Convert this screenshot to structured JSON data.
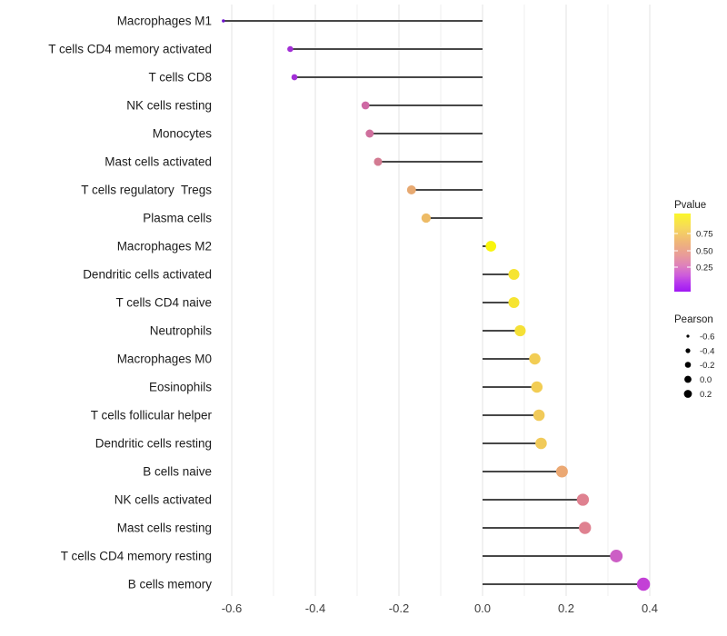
{
  "chart_data": {
    "type": "scatter",
    "variant": "lollipop",
    "title": "",
    "xlabel": "",
    "ylabel": "",
    "xlim": [
      -0.65,
      0.45
    ],
    "x_ticks": [
      -0.6,
      -0.4,
      -0.2,
      0.0,
      0.2,
      0.4
    ],
    "x_tick_labels": [
      "-0.6",
      "-0.4",
      "-0.2",
      "0.0",
      "0.2",
      "0.4"
    ],
    "grid": true,
    "legend_position": "right",
    "points": [
      {
        "label": "Macrophages M1",
        "pearson": -0.62,
        "color": "#6e11ce"
      },
      {
        "label": "T cells CD4 memory activated",
        "pearson": -0.46,
        "color": "#a22fd6"
      },
      {
        "label": "T cells CD8",
        "pearson": -0.45,
        "color": "#a22fd6"
      },
      {
        "label": "NK cells resting",
        "pearson": -0.28,
        "color": "#ce69a4"
      },
      {
        "label": "Monocytes",
        "pearson": -0.27,
        "color": "#cf6f9d"
      },
      {
        "label": "Mast cells activated",
        "pearson": -0.25,
        "color": "#d37b92"
      },
      {
        "label": "T cells regulatory  Tregs",
        "pearson": -0.17,
        "color": "#e7a971"
      },
      {
        "label": "Plasma cells",
        "pearson": -0.135,
        "color": "#edbb66"
      },
      {
        "label": "Macrophages M2",
        "pearson": 0.02,
        "color": "#f9f50c"
      },
      {
        "label": "Dendritic cells activated",
        "pearson": 0.075,
        "color": "#f6e431"
      },
      {
        "label": "T cells CD4 naive",
        "pearson": 0.075,
        "color": "#f6e431"
      },
      {
        "label": "Neutrophils",
        "pearson": 0.09,
        "color": "#f5e036"
      },
      {
        "label": "Macrophages M0",
        "pearson": 0.125,
        "color": "#f2cd54"
      },
      {
        "label": "Eosinophils",
        "pearson": 0.13,
        "color": "#f2cd54"
      },
      {
        "label": "T cells follicular helper",
        "pearson": 0.135,
        "color": "#f1ca59"
      },
      {
        "label": "Dendritic cells resting",
        "pearson": 0.14,
        "color": "#f1ca59"
      },
      {
        "label": "B cells naive",
        "pearson": 0.19,
        "color": "#eba873"
      },
      {
        "label": "NK cells activated",
        "pearson": 0.24,
        "color": "#df8190"
      },
      {
        "label": "Mast cells resting",
        "pearson": 0.245,
        "color": "#df8190"
      },
      {
        "label": "T cells CD4 memory resting",
        "pearson": 0.32,
        "color": "#cc5ec5"
      },
      {
        "label": "B cells memory",
        "pearson": 0.385,
        "color": "#c341d6"
      }
    ],
    "legends": {
      "pvalue": {
        "title": "Pvalue",
        "tick_labels": [
          "0.75",
          "0.50",
          "0.25"
        ],
        "gradient_top_to_bottom": [
          {
            "offset": 0,
            "color": "#fbf72a"
          },
          {
            "offset": 0.18,
            "color": "#f6d95b"
          },
          {
            "offset": 0.38,
            "color": "#efb37b"
          },
          {
            "offset": 0.54,
            "color": "#e89a9b"
          },
          {
            "offset": 0.67,
            "color": "#de80bd"
          },
          {
            "offset": 0.79,
            "color": "#cd5cdb"
          },
          {
            "offset": 0.9,
            "color": "#b434ee"
          },
          {
            "offset": 1,
            "color": "#a018f3"
          }
        ]
      },
      "pearson": {
        "title": "Pearson",
        "tick_labels": [
          "-0.6",
          "-0.4",
          "-0.2",
          "0.0",
          "0.2"
        ]
      }
    },
    "style_colors": {
      "stem": "#474747",
      "grid_major": "#e3e3e3",
      "grid_minor": "#efefef",
      "legend_dot": "#000000"
    }
  }
}
